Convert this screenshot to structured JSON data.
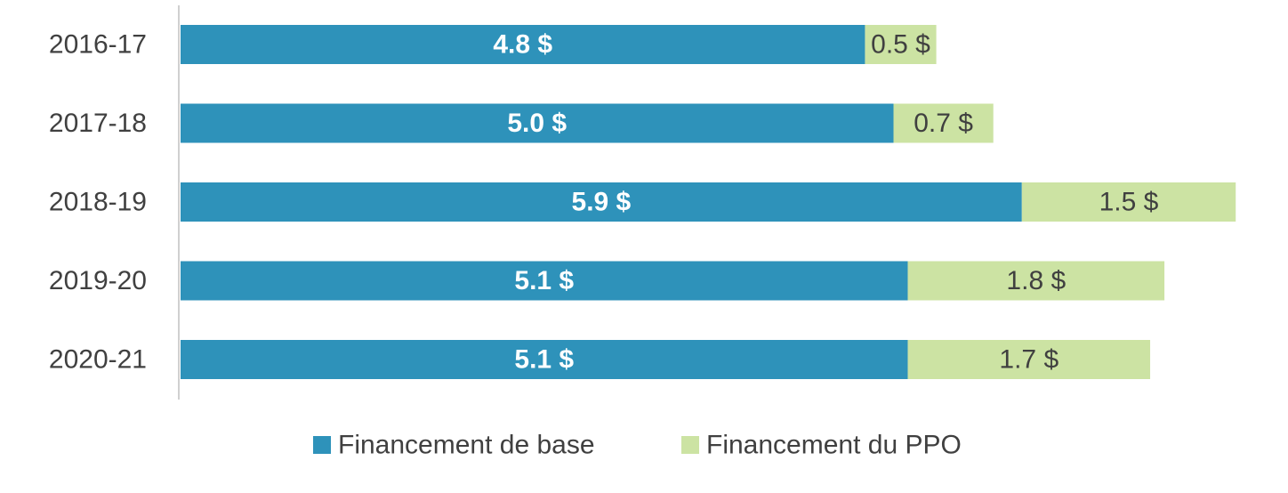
{
  "chart_data": {
    "type": "bar",
    "orientation": "horizontal",
    "stacked": true,
    "categories": [
      "2016-17",
      "2017-18",
      "2018-19",
      "2019-20",
      "2020-21"
    ],
    "series": [
      {
        "name": "Financement de base",
        "values": [
          4.8,
          5.0,
          5.9,
          5.1,
          5.1
        ],
        "labels": [
          "4.8 $",
          "5.0 $",
          "5.9 $",
          "5.1 $",
          "5.1 $"
        ],
        "color": "#2E92BA"
      },
      {
        "name": "Financement du PPO",
        "values": [
          0.5,
          0.7,
          1.5,
          1.8,
          1.7
        ],
        "labels": [
          "0.5 $",
          "0.7 $",
          "1.5 $",
          "1.8 $",
          "1.7 $"
        ],
        "color": "#CCE3A3"
      }
    ],
    "xlim": [
      0,
      7.5
    ],
    "grid": false,
    "legend_position": "bottom"
  }
}
